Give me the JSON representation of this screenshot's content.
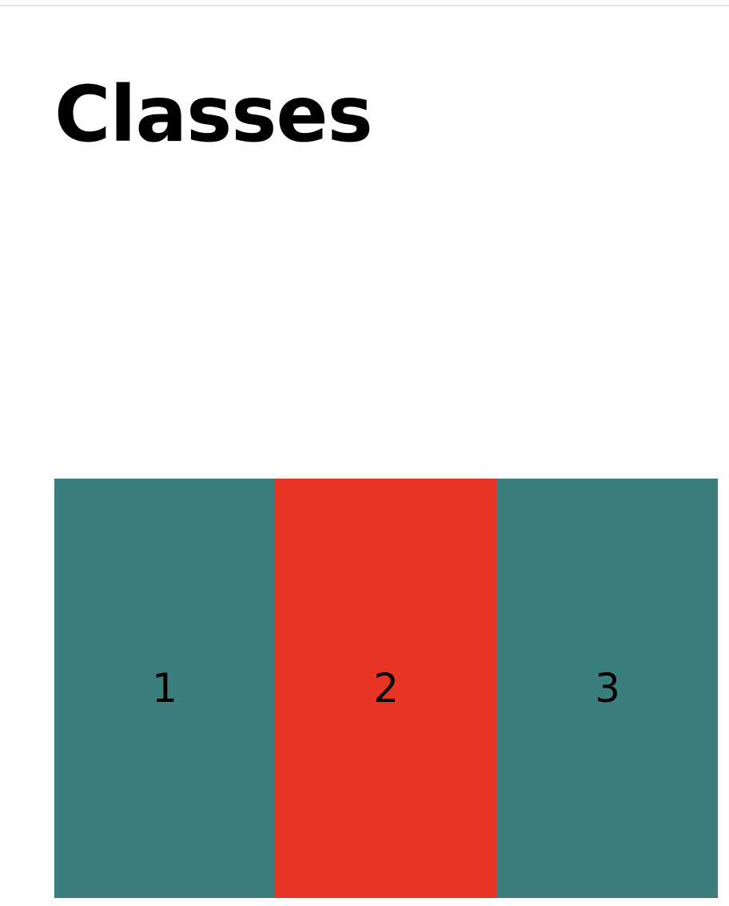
{
  "page": {
    "title": "Classes"
  },
  "boxes": [
    {
      "label": "1",
      "color": "#3a7f7e"
    },
    {
      "label": "2",
      "color": "#e83424"
    },
    {
      "label": "3",
      "color": "#3a7f7e"
    }
  ]
}
